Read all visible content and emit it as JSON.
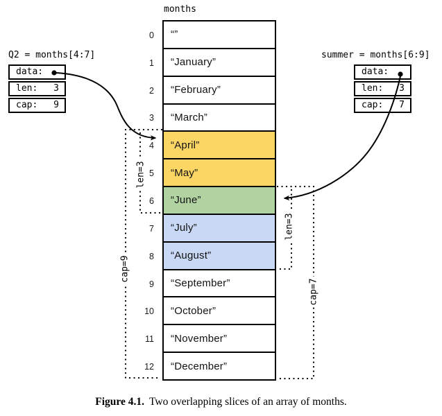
{
  "array": {
    "title": "months",
    "cells": [
      {
        "index": "0",
        "text": "“”",
        "bg": "#ffffff"
      },
      {
        "index": "1",
        "text": "“January”",
        "bg": "#ffffff"
      },
      {
        "index": "2",
        "text": "“February”",
        "bg": "#ffffff"
      },
      {
        "index": "3",
        "text": "“March”",
        "bg": "#ffffff"
      },
      {
        "index": "4",
        "text": "“April”",
        "bg": "#fbd665"
      },
      {
        "index": "5",
        "text": "“May”",
        "bg": "#fbd665"
      },
      {
        "index": "6",
        "text": "“June”",
        "bg": "#b0d3a1"
      },
      {
        "index": "7",
        "text": "“July”",
        "bg": "#c9d8f4"
      },
      {
        "index": "8",
        "text": "“August”",
        "bg": "#c9d8f4"
      },
      {
        "index": "9",
        "text": "“September”",
        "bg": "#ffffff"
      },
      {
        "index": "10",
        "text": "“October”",
        "bg": "#ffffff"
      },
      {
        "index": "11",
        "text": "“November”",
        "bg": "#ffffff"
      },
      {
        "index": "12",
        "text": "“December”",
        "bg": "#ffffff"
      }
    ]
  },
  "slice_q2": {
    "label": "Q2 = months[4:7]",
    "rows": [
      {
        "name": "data:",
        "value": ""
      },
      {
        "name": "len:",
        "value": "3"
      },
      {
        "name": "cap:",
        "value": "9"
      }
    ]
  },
  "slice_summer": {
    "label": "summer = months[6:9]",
    "rows": [
      {
        "name": "data:",
        "value": ""
      },
      {
        "name": "len:",
        "value": "3"
      },
      {
        "name": "cap:",
        "value": "7"
      }
    ]
  },
  "brackets": {
    "q2_len": "len=3",
    "q2_cap": "cap=9",
    "summer_len": "len=3",
    "summer_cap": "cap=7"
  },
  "caption": {
    "label": "Figure 4.1.",
    "text": "Two overlapping slices of an array of months."
  },
  "colors": {
    "q2_fill": "#fbd665",
    "overlap_fill": "#b0d3a1",
    "summer_fill": "#c9d8f4",
    "line": "#000000"
  }
}
